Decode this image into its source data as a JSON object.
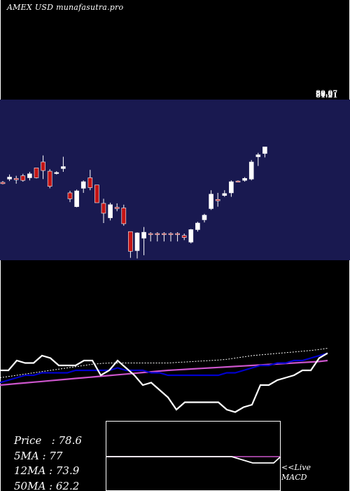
{
  "header": {
    "exchange": "AMEX",
    "symbol": "USD",
    "site": "munafasutra.pro"
  },
  "price_tags": [
    "80.07",
    "78.6",
    "81.21"
  ],
  "stats": [
    {
      "label": "Price",
      "value": "78.6"
    },
    {
      "label": "5MA",
      "value": "77"
    },
    {
      "label": "12MA",
      "value": "73.9"
    },
    {
      "label": "50MA",
      "value": "62.2"
    }
  ],
  "macd_legend": {
    "line1": "<<Live",
    "line2": "MACD"
  },
  "colors": {
    "panel": "#191950",
    "bull": "#ffffff",
    "bear": "#c41414",
    "fast_line": "#ffffff",
    "slow_line": "#0000cd",
    "long_line": "#cc55cc"
  },
  "chart_data": [
    {
      "type": "candlestick",
      "title": "AMEX USD",
      "price_scale_top": 81.21,
      "candles": [
        {
          "o": 56.0,
          "h": 56.4,
          "l": 55.4,
          "c": 55.6
        },
        {
          "o": 57.0,
          "h": 58.4,
          "l": 56.4,
          "c": 57.6
        },
        {
          "o": 57.2,
          "h": 58.0,
          "l": 55.6,
          "c": 56.8
        },
        {
          "o": 58.0,
          "h": 58.6,
          "l": 56.2,
          "c": 56.6
        },
        {
          "o": 57.4,
          "h": 59.2,
          "l": 56.6,
          "c": 58.6
        },
        {
          "o": 60.4,
          "h": 60.4,
          "l": 57.2,
          "c": 57.4
        },
        {
          "o": 62.2,
          "h": 64.2,
          "l": 57.0,
          "c": 59.6
        },
        {
          "o": 59.4,
          "h": 60.0,
          "l": 54.2,
          "c": 54.8
        },
        {
          "o": 58.8,
          "h": 59.4,
          "l": 58.4,
          "c": 59.0
        },
        {
          "o": 60.2,
          "h": 63.8,
          "l": 59.2,
          "c": 60.8
        },
        {
          "o": 52.8,
          "h": 53.4,
          "l": 50.0,
          "c": 51.0
        },
        {
          "o": 48.6,
          "h": 53.8,
          "l": 48.4,
          "c": 53.4
        },
        {
          "o": 54.2,
          "h": 56.6,
          "l": 52.8,
          "c": 56.2
        },
        {
          "o": 57.4,
          "h": 59.8,
          "l": 53.6,
          "c": 54.4
        },
        {
          "o": 55.2,
          "h": 55.2,
          "l": 49.8,
          "c": 49.8
        },
        {
          "o": 49.6,
          "h": 51.0,
          "l": 43.6,
          "c": 46.6
        },
        {
          "o": 45.2,
          "h": 49.8,
          "l": 44.4,
          "c": 49.2
        },
        {
          "o": 48.4,
          "h": 49.6,
          "l": 47.2,
          "c": 48.0
        },
        {
          "o": 48.2,
          "h": 49.2,
          "l": 42.8,
          "c": 43.4
        },
        {
          "o": 41.0,
          "h": 41.0,
          "l": 33.0,
          "c": 35.0
        },
        {
          "o": 35.2,
          "h": 40.8,
          "l": 32.8,
          "c": 40.6
        },
        {
          "o": 39.0,
          "h": 42.4,
          "l": 33.8,
          "c": 40.8
        },
        {
          "o": 40.4,
          "h": 40.8,
          "l": 38.0,
          "c": 40.2
        },
        {
          "o": 40.4,
          "h": 40.8,
          "l": 38.0,
          "c": 40.2
        },
        {
          "o": 40.4,
          "h": 40.8,
          "l": 38.0,
          "c": 40.2
        },
        {
          "o": 40.4,
          "h": 40.8,
          "l": 38.0,
          "c": 40.2
        },
        {
          "o": 40.4,
          "h": 40.8,
          "l": 38.0,
          "c": 40.2
        },
        {
          "o": 39.8,
          "h": 40.4,
          "l": 38.4,
          "c": 39.2
        },
        {
          "o": 37.8,
          "h": 41.8,
          "l": 37.4,
          "c": 41.6
        },
        {
          "o": 41.6,
          "h": 44.0,
          "l": 41.0,
          "c": 43.6
        },
        {
          "o": 44.6,
          "h": 46.4,
          "l": 43.8,
          "c": 46.0
        },
        {
          "o": 48.0,
          "h": 53.6,
          "l": 47.6,
          "c": 52.4
        },
        {
          "o": 50.8,
          "h": 52.8,
          "l": 48.6,
          "c": 50.4
        },
        {
          "o": 52.0,
          "h": 53.6,
          "l": 51.6,
          "c": 52.6
        },
        {
          "o": 52.8,
          "h": 56.6,
          "l": 51.6,
          "c": 56.2
        },
        {
          "o": 56.4,
          "h": 56.6,
          "l": 56.0,
          "c": 56.2
        },
        {
          "o": 56.6,
          "h": 57.6,
          "l": 56.2,
          "c": 57.2
        },
        {
          "o": 57.0,
          "h": 62.8,
          "l": 56.6,
          "c": 62.2
        },
        {
          "o": 63.8,
          "h": 65.0,
          "l": 61.0,
          "c": 64.4
        },
        {
          "o": 64.8,
          "h": 66.8,
          "l": 63.6,
          "c": 66.8
        }
      ]
    },
    {
      "type": "line",
      "series": [
        {
          "values": [
            68,
            68,
            72,
            71,
            71,
            74,
            73,
            70,
            70,
            70,
            72,
            72,
            66,
            68,
            72,
            69,
            66,
            62,
            63,
            60,
            57,
            52,
            55,
            55,
            55,
            55,
            55,
            52,
            51,
            53,
            54,
            62,
            62,
            64,
            65,
            66,
            68,
            68,
            73,
            75
          ]
        },
        {
          "values": [
            63,
            64,
            65,
            66,
            66,
            67,
            67,
            67,
            67,
            68,
            68,
            68,
            68,
            68,
            69,
            68,
            68,
            68,
            67,
            67,
            66,
            66,
            66,
            66,
            66,
            66,
            66,
            67,
            67,
            68,
            69,
            70,
            70,
            71,
            71,
            72,
            72,
            73,
            74,
            75
          ]
        },
        {
          "values": [
            65,
            65.5,
            66,
            66.5,
            67,
            67.5,
            68,
            68.5,
            69,
            69.5,
            70,
            70.5,
            70.8,
            71,
            71,
            71,
            71,
            71,
            71,
            71,
            71,
            71.2,
            71.4,
            71.6,
            71.8,
            72,
            72.2,
            72.5,
            73,
            73.5,
            74,
            74.3,
            74.6,
            74.9,
            75.2,
            75.5,
            75.8,
            76.1,
            76.5,
            77
          ]
        },
        {
          "values": [
            62,
            62.3,
            62.6,
            62.9,
            63.2,
            63.5,
            63.8,
            64.1,
            64.4,
            64.7,
            65,
            65.3,
            65.6,
            65.9,
            66.2,
            66.5,
            66.8,
            67.1,
            67.4,
            67.7,
            68,
            68.2,
            68.4,
            68.6,
            68.8,
            69,
            69.2,
            69.4,
            69.6,
            69.8,
            70,
            70.2,
            70.4,
            70.6,
            70.8,
            71,
            71.2,
            71.4,
            71.6,
            72
          ]
        }
      ]
    },
    {
      "type": "line",
      "series": [
        {
          "values": [
            0,
            0,
            0,
            0,
            0,
            0,
            0,
            0,
            0,
            0,
            0,
            0,
            0,
            0,
            0,
            0,
            0,
            0,
            0,
            -0.1,
            -0.2,
            -0.3,
            -0.3,
            -0.3,
            -0.3,
            0
          ]
        },
        {
          "values": [
            0,
            0,
            0,
            0,
            0,
            0,
            0,
            0,
            0,
            0,
            0,
            0,
            0,
            0,
            0,
            0,
            0,
            0,
            0,
            0,
            0,
            0,
            0,
            0,
            0,
            0
          ]
        }
      ]
    }
  ]
}
